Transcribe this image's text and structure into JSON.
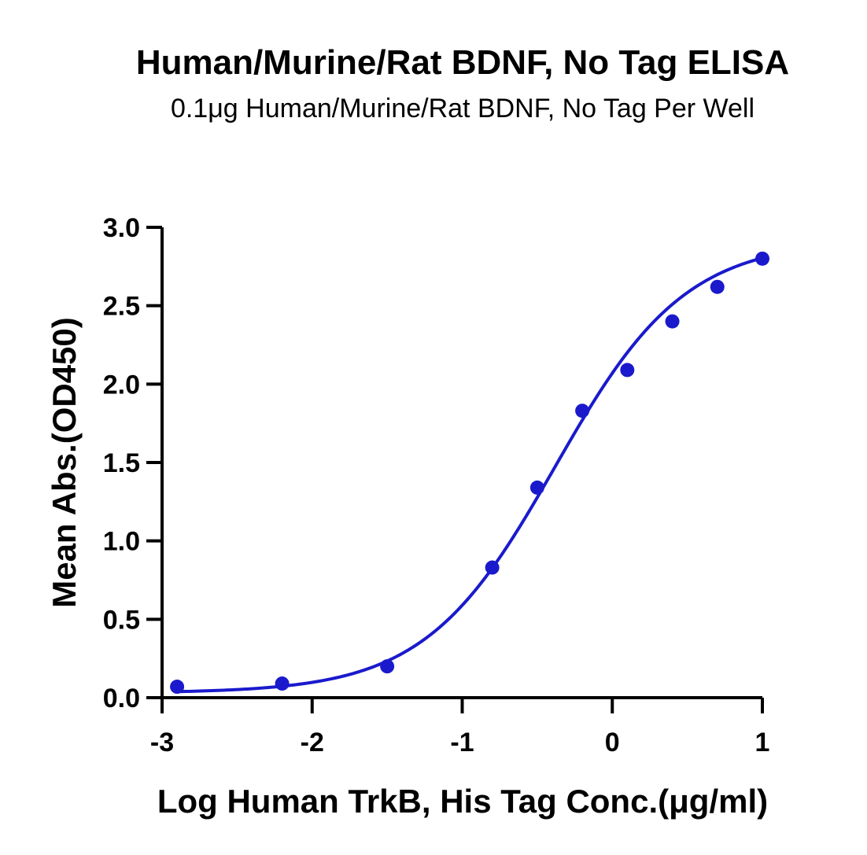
{
  "chart_data": {
    "type": "scatter",
    "title": "Human/Murine/Rat BDNF, No Tag ELISA",
    "subtitle": "0.1μg Human/Murine/Rat BDNF, No Tag Per Well",
    "xlabel": "Log Human TrkB, His Tag Conc.(μg/ml)",
    "ylabel": "Mean Abs.(OD450)",
    "xlim": [
      -3,
      1
    ],
    "ylim": [
      0,
      3
    ],
    "xticks": [
      -3,
      -2,
      -1,
      0,
      1
    ],
    "xtick_labels": [
      "-3",
      "-2",
      "-1",
      "0",
      "1"
    ],
    "yticks": [
      0,
      0.5,
      1,
      1.5,
      2,
      2.5,
      3
    ],
    "ytick_labels": [
      "0.0",
      "0.5",
      "1.0",
      "1.5",
      "2.0",
      "2.5",
      "3.0"
    ],
    "grid": false,
    "series": [
      {
        "points": [
          {
            "x": -2.9,
            "y": 0.07
          },
          {
            "x": -2.2,
            "y": 0.09
          },
          {
            "x": -1.5,
            "y": 0.2
          },
          {
            "x": -0.8,
            "y": 0.83
          },
          {
            "x": -0.5,
            "y": 1.34
          },
          {
            "x": -0.2,
            "y": 1.83
          },
          {
            "x": 0.1,
            "y": 2.09
          },
          {
            "x": 0.4,
            "y": 2.4
          },
          {
            "x": 0.7,
            "y": 2.62
          },
          {
            "x": 1.0,
            "y": 2.8
          }
        ],
        "fit": {
          "model": "4PL",
          "bottom": 0.03,
          "top": 2.92,
          "log_ec50": -0.38,
          "hill_slope": 1.0
        },
        "color": "#1a1acc"
      }
    ]
  }
}
